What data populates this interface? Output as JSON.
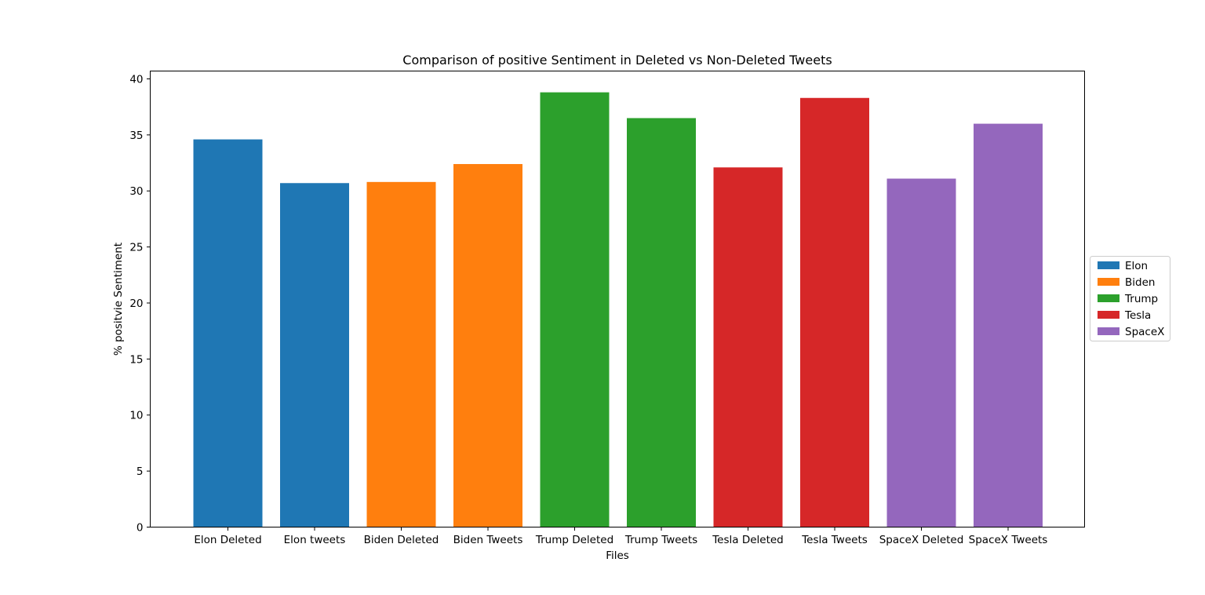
{
  "chart_data": {
    "type": "bar",
    "title": "Comparison of positive Sentiment in Deleted vs Non-Deleted Tweets",
    "xlabel": "Files",
    "ylabel": "% positvie Sentiment",
    "categories": [
      "Elon Deleted",
      "Elon tweets",
      "Biden Deleted",
      "Biden Tweets",
      "Trump Deleted",
      "Trump Tweets",
      "Tesla Deleted",
      "Tesla Tweets",
      "SpaceX Deleted",
      "SpaceX Tweets"
    ],
    "values": [
      34.6,
      30.7,
      30.8,
      32.4,
      38.8,
      36.5,
      32.1,
      38.3,
      31.1,
      36.0
    ],
    "bar_groups": [
      0,
      0,
      1,
      1,
      2,
      2,
      3,
      3,
      4,
      4
    ],
    "ylim": [
      0,
      40.7
    ],
    "yticks": [
      0,
      5,
      10,
      15,
      20,
      25,
      30,
      35,
      40
    ],
    "grid": false,
    "legend": {
      "placement": "right, outside axes",
      "entries": [
        {
          "name": "Elon",
          "color": "#1f77b4"
        },
        {
          "name": "Biden",
          "color": "#ff7f0e"
        },
        {
          "name": "Trump",
          "color": "#2ca02c"
        },
        {
          "name": "Tesla",
          "color": "#d62728"
        },
        {
          "name": "SpaceX",
          "color": "#9467bd"
        }
      ]
    }
  }
}
